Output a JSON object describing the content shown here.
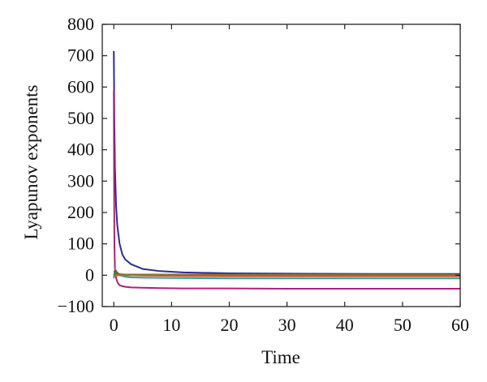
{
  "chart_data": {
    "type": "line",
    "title": "",
    "xlabel": "Time",
    "ylabel": "Lyapunov exponents",
    "xlim": [
      -2,
      60
    ],
    "ylim": [
      -100,
      800
    ],
    "xticks": [
      0,
      10,
      20,
      30,
      40,
      50,
      60
    ],
    "yticks": [
      -100,
      0,
      100,
      200,
      300,
      400,
      500,
      600,
      700,
      800
    ],
    "xtick_labels": [
      "0",
      "10",
      "20",
      "30",
      "40",
      "50",
      "60"
    ],
    "ytick_labels": [
      "−100",
      "0",
      "100",
      "200",
      "300",
      "400",
      "500",
      "600",
      "700",
      "800"
    ],
    "grid": false,
    "series": [
      {
        "color": "#2b2f8f",
        "x": [
          0,
          0.1,
          0.2,
          0.4,
          0.6,
          1,
          1.5,
          2,
          3,
          5,
          8,
          12,
          20,
          30,
          45,
          60
        ],
        "y": [
          715,
          480,
          340,
          220,
          160,
          100,
          65,
          50,
          35,
          20,
          13,
          9,
          6,
          5,
          4,
          4
        ]
      },
      {
        "color": "#b0207a",
        "x": [
          0,
          0.05,
          0.1,
          0.2,
          0.4,
          0.7,
          1,
          1.5,
          2,
          3,
          5,
          8,
          12,
          20,
          30,
          45,
          60
        ],
        "y": [
          590,
          300,
          100,
          20,
          -10,
          -25,
          -32,
          -35,
          -37,
          -39,
          -40,
          -41,
          -42,
          -42,
          -43,
          -43,
          -43
        ]
      },
      {
        "color": "#2aa0a0",
        "x": [
          0,
          0.2,
          0.5,
          1,
          2,
          3,
          5,
          10,
          20,
          30,
          45,
          60
        ],
        "y": [
          -10,
          20,
          10,
          0,
          -5,
          -7,
          -8,
          -9,
          -10,
          -10,
          -10,
          -10
        ]
      },
      {
        "color": "#c0392b",
        "x": [
          0,
          0.3,
          0.6,
          1,
          2,
          3,
          5,
          10,
          20,
          30,
          45,
          60
        ],
        "y": [
          10,
          15,
          8,
          3,
          1,
          0,
          -1,
          -2,
          -3,
          -3,
          -3,
          -3
        ]
      },
      {
        "color": "#2e8b3a",
        "x": [
          0,
          0.2,
          0.5,
          1,
          2,
          3,
          5,
          10,
          20,
          30,
          45,
          60
        ],
        "y": [
          0,
          8,
          5,
          3,
          2,
          2,
          2,
          2,
          2,
          2,
          2,
          2
        ]
      },
      {
        "color": "#d06020",
        "x": [
          0,
          0.2,
          0.5,
          1,
          2,
          3,
          5,
          10,
          20,
          30,
          45,
          60
        ],
        "y": [
          0,
          -2,
          -1,
          0,
          0,
          0,
          0,
          0,
          0,
          0,
          0,
          0
        ]
      }
    ]
  }
}
